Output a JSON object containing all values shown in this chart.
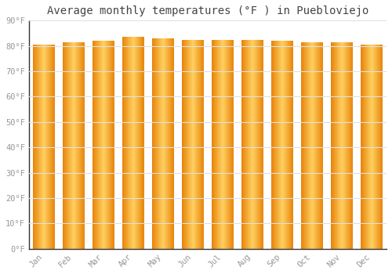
{
  "title": "Average monthly temperatures (°F ) in Puebloviejo",
  "months": [
    "Jan",
    "Feb",
    "Mar",
    "Apr",
    "May",
    "Jun",
    "Jul",
    "Aug",
    "Sep",
    "Oct",
    "Nov",
    "Dec"
  ],
  "values": [
    80.5,
    81.5,
    82.0,
    83.5,
    83.0,
    82.5,
    82.5,
    82.5,
    82.0,
    81.5,
    81.5,
    80.5
  ],
  "bar_color_left": "#E8840A",
  "bar_color_mid": "#FFD060",
  "bar_color_right": "#E8840A",
  "ylim": [
    0,
    90
  ],
  "yticks": [
    0,
    10,
    20,
    30,
    40,
    50,
    60,
    70,
    80,
    90
  ],
  "ytick_labels": [
    "0°F",
    "10°F",
    "20°F",
    "30°F",
    "40°F",
    "50°F",
    "60°F",
    "70°F",
    "80°F",
    "90°F"
  ],
  "background_color": "#ffffff",
  "plot_bg_color": "#ffffff",
  "grid_color": "#e0e0e0",
  "title_fontsize": 10,
  "tick_fontsize": 7.5,
  "tick_color": "#999999",
  "spine_color": "#333333",
  "bar_width": 0.72
}
